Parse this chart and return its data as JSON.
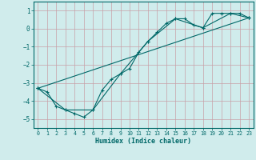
{
  "title": "",
  "xlabel": "Humidex (Indice chaleur)",
  "background_color": "#d0ecec",
  "grid_color": "#c8a0a8",
  "line_color": "#006868",
  "xlim": [
    -0.5,
    23.5
  ],
  "ylim": [
    -5.5,
    1.5
  ],
  "xticks": [
    0,
    1,
    2,
    3,
    4,
    5,
    6,
    7,
    8,
    9,
    10,
    11,
    12,
    13,
    14,
    15,
    16,
    17,
    18,
    19,
    20,
    21,
    22,
    23
  ],
  "yticks": [
    -5,
    -4,
    -3,
    -2,
    -1,
    0,
    1
  ],
  "series": [
    {
      "x": [
        0,
        1,
        2,
        3,
        4,
        5,
        6,
        7,
        8,
        9,
        10,
        11,
        12,
        13,
        14,
        15,
        16,
        17,
        18,
        19,
        20,
        21,
        22,
        23
      ],
      "y": [
        -3.3,
        -3.5,
        -4.3,
        -4.5,
        -4.7,
        -4.9,
        -4.5,
        -3.4,
        -2.8,
        -2.5,
        -2.2,
        -1.3,
        -0.7,
        -0.2,
        0.3,
        0.55,
        0.55,
        0.2,
        0.05,
        0.85,
        0.85,
        0.85,
        0.85,
        0.6
      ]
    },
    {
      "x": [
        0,
        3,
        6,
        9,
        12,
        15,
        18,
        21,
        23
      ],
      "y": [
        -3.3,
        -4.5,
        -4.5,
        -2.5,
        -0.7,
        0.55,
        0.05,
        0.85,
        0.6
      ]
    },
    {
      "x": [
        0,
        23
      ],
      "y": [
        -3.3,
        0.6
      ]
    }
  ]
}
